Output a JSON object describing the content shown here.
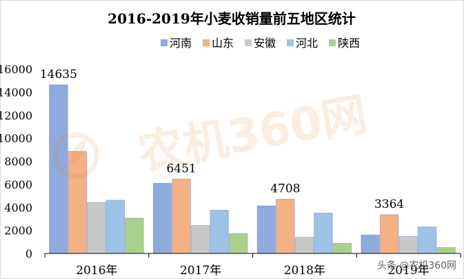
{
  "chart_data": {
    "type": "bar",
    "title": "2016-2019年小麦收销量前五地区统计",
    "categories": [
      "2016年",
      "2017年",
      "2018年",
      "2019年"
    ],
    "ylim": [
      0,
      16000
    ],
    "yticks": [
      0,
      2000,
      4000,
      6000,
      8000,
      10000,
      12000,
      14000,
      16000
    ],
    "grid": false,
    "legend_position": "top",
    "series": [
      {
        "name": "河南",
        "color": "#8faadc",
        "values": [
          14635,
          6090,
          4130,
          1600
        ]
      },
      {
        "name": "山东",
        "color": "#f4b183",
        "values": [
          8850,
          6451,
          4708,
          3364
        ]
      },
      {
        "name": "安徽",
        "color": "#c9c9c9",
        "values": [
          4430,
          2430,
          1400,
          1470
        ]
      },
      {
        "name": "河北",
        "color": "#9dc3e6",
        "values": [
          4620,
          3750,
          3510,
          2300
        ]
      },
      {
        "name": "陕西",
        "color": "#a9d18e",
        "values": [
          3060,
          1720,
          880,
          510
        ]
      }
    ],
    "data_labels": [
      {
        "category": "2016年",
        "series": "河南",
        "text": "14635"
      },
      {
        "category": "2017年",
        "series": "山东",
        "text": "6451"
      },
      {
        "category": "2018年",
        "series": "山东",
        "text": "4708"
      },
      {
        "category": "2019年",
        "series": "山东",
        "text": "3364"
      }
    ]
  },
  "watermark": {
    "text": "农机360网"
  },
  "footer_watermark": {
    "text": "头条 @农机360网"
  }
}
